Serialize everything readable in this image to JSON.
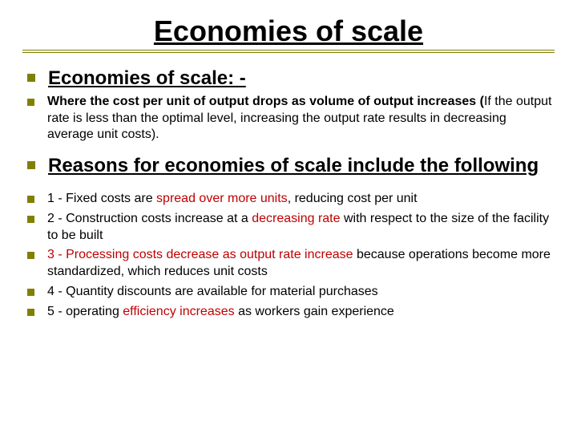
{
  "colors": {
    "accent": "#808000",
    "red": "#c00000",
    "text": "#000000",
    "background": "#ffffff"
  },
  "title": "Economies of scale",
  "heading1": "Economies of scale: -",
  "para1_bold": "Where the cost per unit of output drops as volume of output increases (",
  "para1_rest": "If the output rate is less than the optimal level, increasing the output rate results in decreasing average unit costs).",
  "heading2": "Reasons for economies of scale include the following",
  "item1_a": "1 - Fixed costs are ",
  "item1_b": "spread over more units",
  "item1_c": ", reducing cost per unit",
  "item2_a": "2 - Construction costs increase at a ",
  "item2_b": "decreasing rate ",
  "item2_c": "with respect to the size of the facility to be built",
  "item3_a": "3 - Processing costs decrease as output rate increase ",
  "item3_b": "because operations become more standardized, which reduces unit costs",
  "item4": "4 - Quantity discounts are available for material purchases",
  "item5_a": "5 - operating ",
  "item5_b": "efficiency increases ",
  "item5_c": "as workers gain experience"
}
